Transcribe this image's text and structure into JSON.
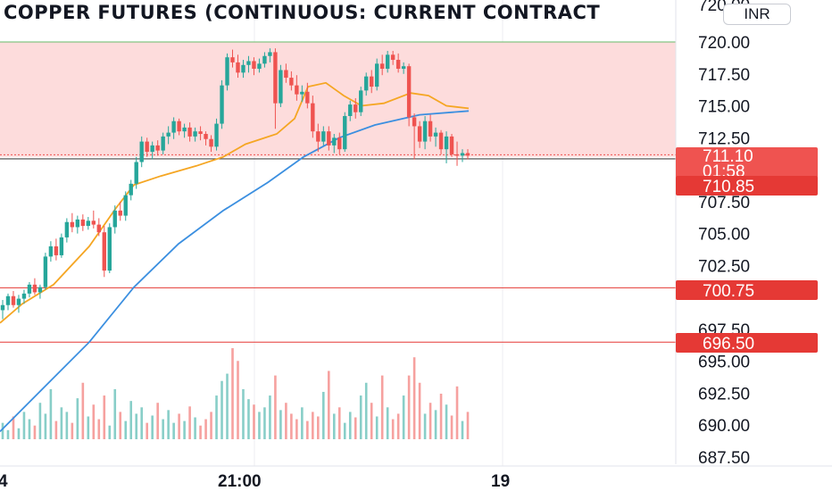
{
  "title": "COPPER FUTURES (CONTINUOUS: CURRENT CONTRACT",
  "currency_button": "INR",
  "colors": {
    "up": "#26a69a",
    "down": "#ef5350",
    "zone_fill": "#fddcdc",
    "zone_border": "#66bb6a",
    "ma_fast": "#f5a623",
    "ma_slow": "#3b8fe0",
    "level_line": "#e53935"
  },
  "price_scale": {
    "ticks": [
      "720.00",
      "717.50",
      "715.00",
      "712.50",
      "707.50",
      "705.00",
      "702.50",
      "697.50",
      "695.00",
      "692.50",
      "690.00",
      "687.50"
    ],
    "partial_top_tick": "720.00"
  },
  "time_axis": {
    "labels": [
      {
        "text": "4",
        "key": "start"
      },
      {
        "text": "21:00",
        "key": "mid"
      },
      {
        "text": "19",
        "key": "day"
      }
    ]
  },
  "price_tags": {
    "last_price": "711.10",
    "countdown": "01:58",
    "support_1": "710.85",
    "support_2": "700.75",
    "support_3": "696.50"
  },
  "chart_data": {
    "type": "candlestick",
    "title": "COPPER FUTURES (CONTINUOUS: CURRENT CONTRACT",
    "ylim": [
      686.0,
      722.5
    ],
    "x_labels": [
      "4",
      "21:00",
      "19"
    ],
    "zone": {
      "from": 711.0,
      "to": 720.0
    },
    "horizontal_levels": [
      710.85,
      700.75,
      696.5
    ],
    "last_price": 711.1,
    "series": [
      {
        "name": "",
        "kind": "moving_average",
        "points": [
          [
            0,
            698.0
          ],
          [
            25,
            699.5
          ],
          [
            60,
            701.0
          ],
          [
            100,
            704.0
          ],
          [
            130,
            707.0
          ],
          [
            150,
            708.8
          ],
          [
            180,
            709.5
          ],
          [
            220,
            710.3
          ],
          [
            250,
            711.0
          ],
          [
            275,
            712.0
          ],
          [
            310,
            712.8
          ],
          [
            330,
            714.0
          ],
          [
            345,
            716.5
          ],
          [
            365,
            716.8
          ],
          [
            385,
            715.8
          ],
          [
            405,
            715.0
          ],
          [
            430,
            715.2
          ],
          [
            460,
            716.0
          ],
          [
            480,
            715.8
          ],
          [
            500,
            715.0
          ],
          [
            525,
            714.8
          ]
        ]
      },
      {
        "name": "",
        "kind": "moving_average",
        "points": [
          [
            0,
            689.5
          ],
          [
            50,
            693.0
          ],
          [
            100,
            696.5
          ],
          [
            150,
            700.8
          ],
          [
            200,
            704.2
          ],
          [
            250,
            706.8
          ],
          [
            300,
            709.0
          ],
          [
            340,
            711.0
          ],
          [
            380,
            712.5
          ],
          [
            420,
            713.5
          ],
          [
            470,
            714.3
          ],
          [
            525,
            714.6
          ]
        ]
      }
    ],
    "candles_note": "open/high/low/close per bar, bar index 0-87",
    "candles": [
      [
        699.0,
        699.8,
        698.3,
        699.4
      ],
      [
        699.4,
        700.3,
        699.0,
        700.1
      ],
      [
        700.1,
        700.5,
        699.2,
        699.4
      ],
      [
        699.4,
        700.2,
        698.8,
        699.9
      ],
      [
        699.9,
        700.6,
        699.5,
        700.3
      ],
      [
        700.3,
        701.2,
        700.0,
        701.0
      ],
      [
        701.0,
        701.5,
        700.2,
        700.4
      ],
      [
        700.4,
        701.0,
        699.9,
        700.8
      ],
      [
        700.8,
        703.5,
        700.6,
        703.2
      ],
      [
        703.2,
        704.4,
        702.8,
        704.0
      ],
      [
        704.0,
        704.6,
        702.9,
        703.3
      ],
      [
        703.3,
        705.0,
        703.1,
        704.7
      ],
      [
        704.7,
        706.2,
        704.3,
        705.9
      ],
      [
        705.9,
        706.6,
        705.1,
        705.5
      ],
      [
        705.5,
        706.4,
        705.0,
        706.1
      ],
      [
        706.1,
        706.5,
        705.2,
        705.6
      ],
      [
        705.6,
        706.3,
        705.3,
        706.0
      ],
      [
        706.0,
        706.8,
        705.4,
        705.7
      ],
      [
        705.7,
        706.2,
        704.8,
        705.1
      ],
      [
        705.1,
        705.6,
        701.6,
        702.1
      ],
      [
        702.1,
        705.8,
        701.9,
        705.5
      ],
      [
        705.5,
        707.2,
        705.0,
        706.8
      ],
      [
        706.8,
        707.5,
        706.0,
        706.4
      ],
      [
        706.4,
        708.3,
        706.0,
        708.0
      ],
      [
        708.0,
        709.2,
        707.6,
        708.9
      ],
      [
        708.9,
        711.0,
        708.5,
        710.6
      ],
      [
        710.6,
        712.6,
        710.2,
        712.2
      ],
      [
        712.2,
        712.5,
        711.0,
        711.4
      ],
      [
        711.4,
        712.2,
        710.8,
        711.9
      ],
      [
        711.9,
        712.3,
        711.1,
        711.5
      ],
      [
        711.5,
        712.9,
        711.2,
        712.6
      ],
      [
        712.6,
        713.4,
        712.0,
        712.9
      ],
      [
        712.9,
        714.1,
        712.4,
        713.8
      ],
      [
        713.8,
        714.0,
        712.7,
        713.0
      ],
      [
        713.0,
        713.6,
        712.5,
        713.3
      ],
      [
        713.3,
        713.7,
        712.2,
        712.6
      ],
      [
        712.6,
        713.3,
        712.2,
        713.0
      ],
      [
        713.0,
        713.4,
        712.3,
        712.8
      ],
      [
        712.8,
        713.0,
        711.9,
        712.4
      ],
      [
        712.4,
        712.7,
        711.4,
        711.8
      ],
      [
        711.8,
        714.0,
        711.5,
        713.6
      ],
      [
        713.6,
        717.0,
        713.2,
        716.6
      ],
      [
        716.6,
        719.1,
        716.2,
        718.8
      ],
      [
        718.8,
        719.4,
        718.0,
        718.4
      ],
      [
        718.4,
        719.0,
        717.2,
        717.6
      ],
      [
        717.6,
        718.6,
        717.2,
        718.2
      ],
      [
        718.2,
        718.9,
        717.6,
        718.5
      ],
      [
        718.5,
        718.8,
        717.4,
        717.9
      ],
      [
        717.9,
        718.7,
        717.6,
        718.3
      ],
      [
        718.3,
        719.2,
        718.0,
        718.9
      ],
      [
        718.9,
        719.5,
        718.4,
        719.2
      ],
      [
        719.2,
        719.5,
        713.2,
        715.2
      ],
      [
        715.2,
        718.2,
        714.9,
        717.8
      ],
      [
        717.8,
        718.3,
        716.8,
        717.2
      ],
      [
        717.2,
        717.7,
        716.2,
        716.6
      ],
      [
        716.6,
        717.4,
        715.4,
        715.9
      ],
      [
        715.9,
        716.6,
        715.3,
        716.1
      ],
      [
        716.1,
        716.8,
        714.8,
        715.2
      ],
      [
        715.2,
        715.8,
        712.5,
        713.0
      ],
      [
        713.0,
        713.6,
        711.4,
        712.2
      ],
      [
        712.2,
        713.4,
        711.9,
        713.0
      ],
      [
        713.0,
        713.4,
        711.5,
        711.9
      ],
      [
        711.9,
        712.8,
        711.3,
        712.5
      ],
      [
        712.5,
        712.9,
        711.2,
        711.6
      ],
      [
        711.6,
        714.5,
        711.4,
        714.2
      ],
      [
        714.2,
        715.4,
        713.8,
        715.1
      ],
      [
        715.1,
        715.6,
        714.0,
        714.5
      ],
      [
        714.5,
        716.5,
        714.2,
        716.2
      ],
      [
        716.2,
        717.6,
        715.8,
        717.3
      ],
      [
        717.3,
        717.8,
        716.0,
        716.5
      ],
      [
        716.5,
        718.7,
        716.2,
        718.3
      ],
      [
        718.3,
        719.0,
        717.4,
        717.9
      ],
      [
        717.9,
        719.3,
        717.6,
        719.0
      ],
      [
        719.0,
        719.3,
        718.2,
        718.6
      ],
      [
        718.6,
        719.1,
        717.6,
        717.9
      ],
      [
        717.9,
        718.4,
        717.5,
        718.1
      ],
      [
        718.1,
        718.3,
        713.4,
        714.1
      ],
      [
        714.1,
        714.4,
        710.8,
        713.4
      ],
      [
        713.4,
        713.8,
        711.7,
        712.2
      ],
      [
        712.2,
        714.2,
        711.6,
        713.8
      ],
      [
        713.8,
        714.3,
        712.2,
        712.6
      ],
      [
        712.6,
        713.3,
        711.8,
        712.9
      ],
      [
        712.9,
        713.1,
        711.2,
        711.6
      ],
      [
        711.6,
        713.0,
        710.5,
        712.6
      ],
      [
        712.6,
        712.8,
        711.0,
        711.2
      ],
      [
        711.2,
        712.2,
        710.3,
        711.1
      ],
      [
        711.1,
        711.6,
        710.6,
        711.3
      ],
      [
        711.3,
        711.6,
        710.8,
        711.1
      ]
    ],
    "volume_note": "relative volume 0-1 per bar",
    "volume": [
      0.18,
      0.1,
      0.25,
      0.12,
      0.3,
      0.22,
      0.15,
      0.4,
      0.28,
      0.55,
      0.2,
      0.35,
      0.3,
      0.18,
      0.45,
      0.62,
      0.25,
      0.38,
      0.22,
      0.48,
      0.15,
      0.55,
      0.3,
      0.2,
      0.42,
      0.28,
      0.35,
      0.18,
      0.26,
      0.4,
      0.22,
      0.32,
      0.18,
      0.28,
      0.2,
      0.36,
      0.24,
      0.15,
      0.22,
      0.3,
      0.48,
      0.64,
      0.72,
      1.0,
      0.86,
      0.55,
      0.44,
      0.38,
      0.3,
      0.35,
      0.48,
      0.7,
      0.32,
      0.4,
      0.28,
      0.22,
      0.35,
      0.2,
      0.3,
      0.25,
      0.52,
      0.75,
      0.28,
      0.35,
      0.18,
      0.3,
      0.24,
      0.48,
      0.62,
      0.4,
      0.25,
      0.7,
      0.35,
      0.22,
      0.28,
      0.48,
      0.7,
      0.9,
      0.62,
      0.28,
      0.4,
      0.32,
      0.5,
      0.38,
      0.26,
      0.58,
      0.2,
      0.3
    ]
  }
}
